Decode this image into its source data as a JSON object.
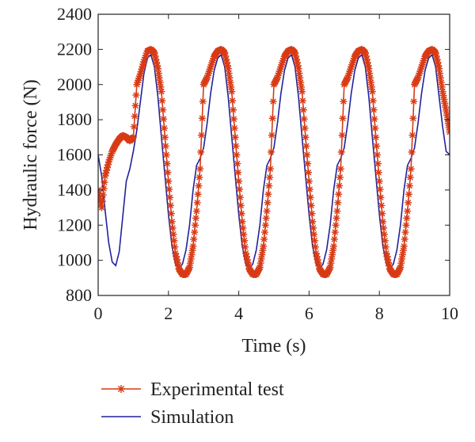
{
  "chart_data": {
    "type": "line",
    "title": "",
    "xlabel": "Time (s)",
    "ylabel": "Hydraulic force (N)",
    "xlim": [
      0,
      10
    ],
    "ylim": [
      800,
      2400
    ],
    "xticks": [
      0,
      2,
      4,
      6,
      8,
      10
    ],
    "yticks": [
      800,
      1000,
      1200,
      1400,
      1600,
      1800,
      2000,
      2200,
      2400
    ],
    "grid": false,
    "legend_position": "bottom",
    "colors": {
      "experimental": "#d83a14",
      "simulation": "#22229a"
    },
    "series": [
      {
        "name": "Experimental test",
        "marker": "asterisk",
        "x": [
          0,
          0.1,
          0.2,
          0.3,
          0.4,
          0.5,
          0.6,
          0.7,
          0.8,
          0.9,
          1.0,
          1.1,
          1.2,
          1.3,
          1.4,
          1.5,
          1.6,
          1.7,
          1.8,
          1.9,
          2.0,
          2.1,
          2.2,
          2.3,
          2.4,
          2.5,
          2.6,
          2.7,
          2.8,
          2.9,
          3.0,
          3.1,
          3.2,
          3.3,
          3.4,
          3.5,
          3.6,
          3.7,
          3.8,
          3.9,
          4.0,
          4.1,
          4.2,
          4.3,
          4.4,
          4.5,
          4.6,
          4.7,
          4.8,
          4.9,
          5.0,
          5.1,
          5.2,
          5.3,
          5.4,
          5.5,
          5.6,
          5.7,
          5.8,
          5.9,
          6.0,
          6.1,
          6.2,
          6.3,
          6.4,
          6.5,
          6.6,
          6.7,
          6.8,
          6.9,
          7.0,
          7.1,
          7.2,
          7.3,
          7.4,
          7.5,
          7.6,
          7.7,
          7.8,
          7.9,
          8.0,
          8.1,
          8.2,
          8.3,
          8.4,
          8.5,
          8.6,
          8.7,
          8.8,
          8.9,
          9.0,
          9.1,
          9.2,
          9.3,
          9.4,
          9.5,
          9.6,
          9.7,
          9.8,
          9.9,
          10.0
        ],
        "y": [
          1400,
          1300,
          1480,
          1560,
          1620,
          1660,
          1690,
          1710,
          1700,
          1680,
          1700,
          2000,
          2060,
          2130,
          2190,
          2200,
          2180,
          2090,
          1960,
          1700,
          1450,
          1220,
          1040,
          950,
          920,
          920,
          960,
          1080,
          1280,
          1520,
          2000,
          2040,
          2100,
          2160,
          2190,
          2200,
          2180,
          2090,
          1960,
          1700,
          1450,
          1220,
          1040,
          950,
          920,
          920,
          960,
          1080,
          1280,
          1520,
          2000,
          2040,
          2100,
          2160,
          2190,
          2200,
          2180,
          2090,
          1960,
          1700,
          1450,
          1220,
          1040,
          950,
          920,
          920,
          960,
          1080,
          1280,
          1520,
          2000,
          2040,
          2100,
          2160,
          2190,
          2200,
          2180,
          2090,
          1960,
          1700,
          1450,
          1220,
          1040,
          950,
          920,
          920,
          960,
          1080,
          1280,
          1520,
          2000,
          2040,
          2100,
          2160,
          2190,
          2200,
          2180,
          2090,
          1960,
          1850,
          1730
        ]
      },
      {
        "name": "Simulation",
        "marker": "none",
        "x": [
          0,
          0.1,
          0.2,
          0.3,
          0.4,
          0.5,
          0.6,
          0.7,
          0.8,
          0.9,
          1.0,
          1.1,
          1.2,
          1.3,
          1.4,
          1.5,
          1.6,
          1.7,
          1.8,
          1.9,
          2.0,
          2.1,
          2.2,
          2.3,
          2.4,
          2.5,
          2.6,
          2.7,
          2.8,
          2.9,
          3.0,
          3.1,
          3.2,
          3.3,
          3.4,
          3.5,
          3.6,
          3.7,
          3.8,
          3.9,
          4.0,
          4.1,
          4.2,
          4.3,
          4.4,
          4.5,
          4.6,
          4.7,
          4.8,
          4.9,
          5.0,
          5.1,
          5.2,
          5.3,
          5.4,
          5.5,
          5.6,
          5.7,
          5.8,
          5.9,
          6.0,
          6.1,
          6.2,
          6.3,
          6.4,
          6.5,
          6.6,
          6.7,
          6.8,
          6.9,
          7.0,
          7.1,
          7.2,
          7.3,
          7.4,
          7.5,
          7.6,
          7.7,
          7.8,
          7.9,
          8.0,
          8.1,
          8.2,
          8.3,
          8.4,
          8.5,
          8.6,
          8.7,
          8.8,
          8.9,
          9.0,
          9.1,
          9.2,
          9.3,
          9.4,
          9.5,
          9.6,
          9.7,
          9.8,
          9.9,
          10.0
        ],
        "y": [
          1600,
          1480,
          1280,
          1100,
          990,
          970,
          1050,
          1250,
          1450,
          1520,
          1620,
          1740,
          1900,
          2060,
          2150,
          2170,
          2100,
          1930,
          1700,
          1480,
          1260,
          1080,
          980,
          950,
          980,
          1060,
          1200,
          1400,
          1540,
          1580,
          1640,
          1780,
          1950,
          2080,
          2150,
          2170,
          2100,
          1930,
          1700,
          1480,
          1260,
          1080,
          980,
          950,
          980,
          1060,
          1200,
          1400,
          1540,
          1580,
          1640,
          1780,
          1950,
          2080,
          2150,
          2170,
          2100,
          1930,
          1700,
          1480,
          1260,
          1080,
          980,
          950,
          980,
          1060,
          1200,
          1400,
          1540,
          1580,
          1640,
          1780,
          1950,
          2080,
          2150,
          2170,
          2100,
          1930,
          1700,
          1480,
          1260,
          1080,
          980,
          950,
          980,
          1060,
          1200,
          1400,
          1540,
          1580,
          1640,
          1780,
          1950,
          2080,
          2150,
          2170,
          2100,
          1930,
          1760,
          1620,
          1600
        ]
      }
    ]
  }
}
